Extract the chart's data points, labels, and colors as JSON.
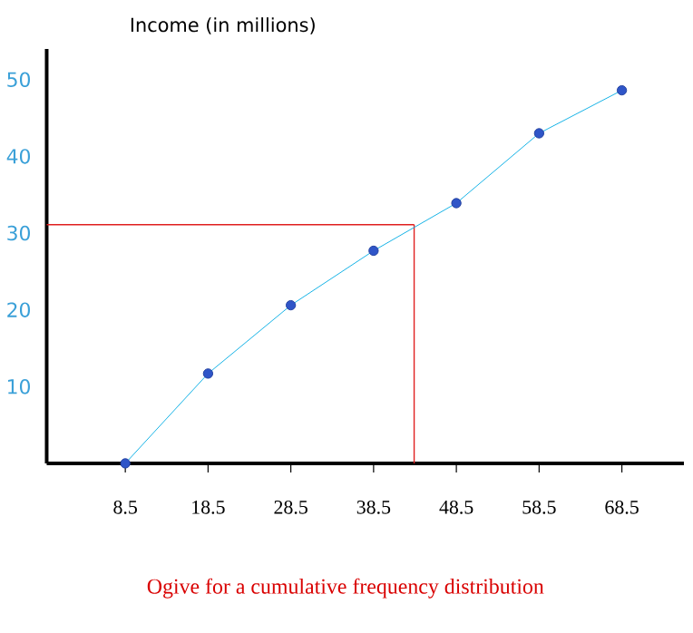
{
  "chart_data": {
    "type": "line",
    "ylabel": "Income (in millions)",
    "x": [
      8.5,
      18.5,
      28.5,
      38.5,
      48.5,
      58.5,
      68.5
    ],
    "series": [
      {
        "color": "#2f55c8",
        "values": [
          0,
          11.7,
          20.6,
          27.7,
          33.9,
          43,
          48.6
        ]
      }
    ],
    "marker": "circle",
    "line_style": "solid",
    "xlim": [
      -1,
      76
    ],
    "ylim": [
      0,
      54
    ],
    "xticks": [
      8.5,
      18.5,
      28.5,
      38.5,
      48.5,
      58.5,
      68.5
    ],
    "yticks": [
      10,
      20,
      30,
      40,
      50
    ],
    "ref_lines": [
      {
        "axis": "y",
        "value": 31.1,
        "color": "#e02020"
      },
      {
        "axis": "x",
        "value": 43.4,
        "color": "#e02020"
      }
    ],
    "annotations": [
      "Ogive for a cumulative frequency distribution"
    ],
    "grid": false
  }
}
